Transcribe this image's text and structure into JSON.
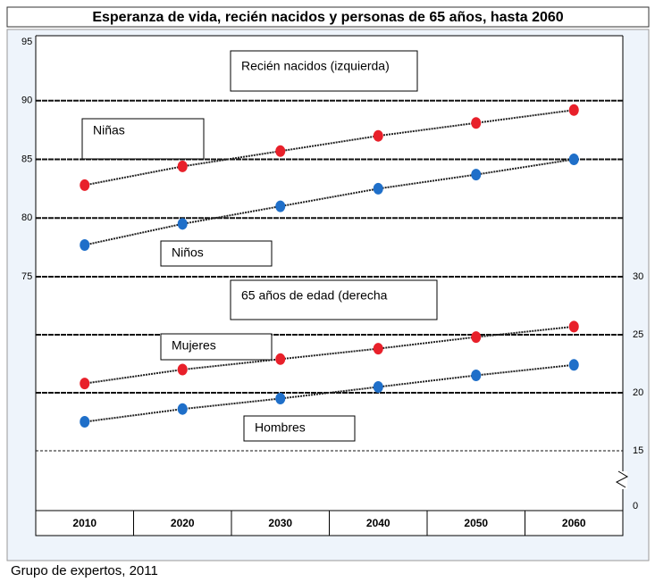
{
  "chart_data": {
    "type": "line",
    "title": "Esperanza de vida, recién nacidos y personas de 65 años, hasta 2060",
    "source": "Grupo de expertos, 2011",
    "annotations": [
      "Recién nacidos (izquierda)",
      "65 años de edad (derecha"
    ],
    "categories": [
      "2010",
      "2020",
      "2030",
      "2040",
      "2050",
      "2060"
    ],
    "ylim": [
      75,
      95
    ],
    "yticks": [
      75,
      80,
      85,
      90,
      95
    ],
    "y2lim": [
      0,
      30
    ],
    "y2ticks": [
      0,
      15,
      20,
      25,
      30
    ],
    "y2_break": [
      0,
      10
    ],
    "grid": true,
    "series": [
      {
        "name": "Niñas",
        "color": "#e8202a",
        "axis": "y",
        "values": [
          82.8,
          84.4,
          85.7,
          87.0,
          88.1,
          89.2
        ]
      },
      {
        "name": "Niños",
        "color": "#1f6fc9",
        "axis": "y",
        "values": [
          77.7,
          79.5,
          81.0,
          82.5,
          83.7,
          85.0
        ]
      },
      {
        "name": "Mujeres",
        "color": "#e8202a",
        "axis": "y2",
        "values": [
          20.8,
          22.0,
          22.9,
          23.8,
          24.8,
          25.7
        ]
      },
      {
        "name": "Hombres",
        "color": "#1f6fc9",
        "axis": "y2",
        "values": [
          17.5,
          18.6,
          19.5,
          20.5,
          21.5,
          22.4
        ]
      }
    ]
  }
}
